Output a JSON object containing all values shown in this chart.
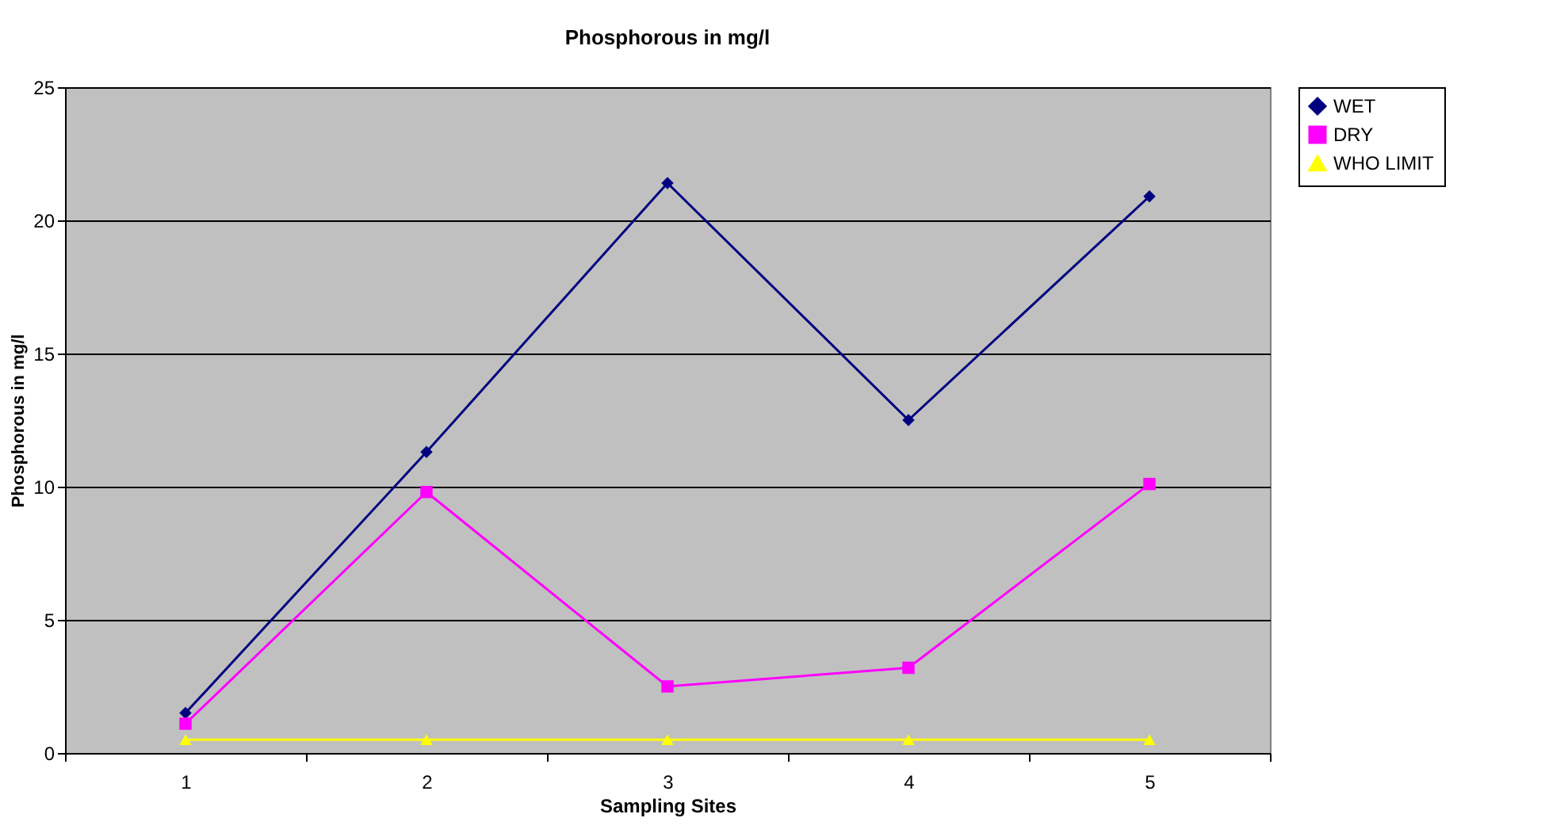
{
  "chart_data": {
    "type": "line",
    "title": "Phosphorous in mg/l",
    "xlabel": "Sampling Sites",
    "ylabel": "Phosphorous in mg/l",
    "categories": [
      "1",
      "2",
      "3",
      "4",
      "5"
    ],
    "series": [
      {
        "name": "WET",
        "color": "#000080",
        "marker": "diamond",
        "values": [
          1.5,
          11.3,
          21.4,
          12.5,
          20.9
        ]
      },
      {
        "name": "DRY",
        "color": "#ff00ff",
        "marker": "square",
        "values": [
          1.1,
          9.8,
          2.5,
          3.2,
          10.1
        ]
      },
      {
        "name": "WHO LIMIT",
        "color": "#ffff00",
        "marker": "triangle",
        "values": [
          0.5,
          0.5,
          0.5,
          0.5,
          0.5
        ]
      }
    ],
    "ylim": [
      0,
      25
    ],
    "yticks": [
      0,
      5,
      10,
      15,
      20,
      25
    ],
    "grid": "y",
    "legend": "right",
    "line_style": "solid"
  }
}
